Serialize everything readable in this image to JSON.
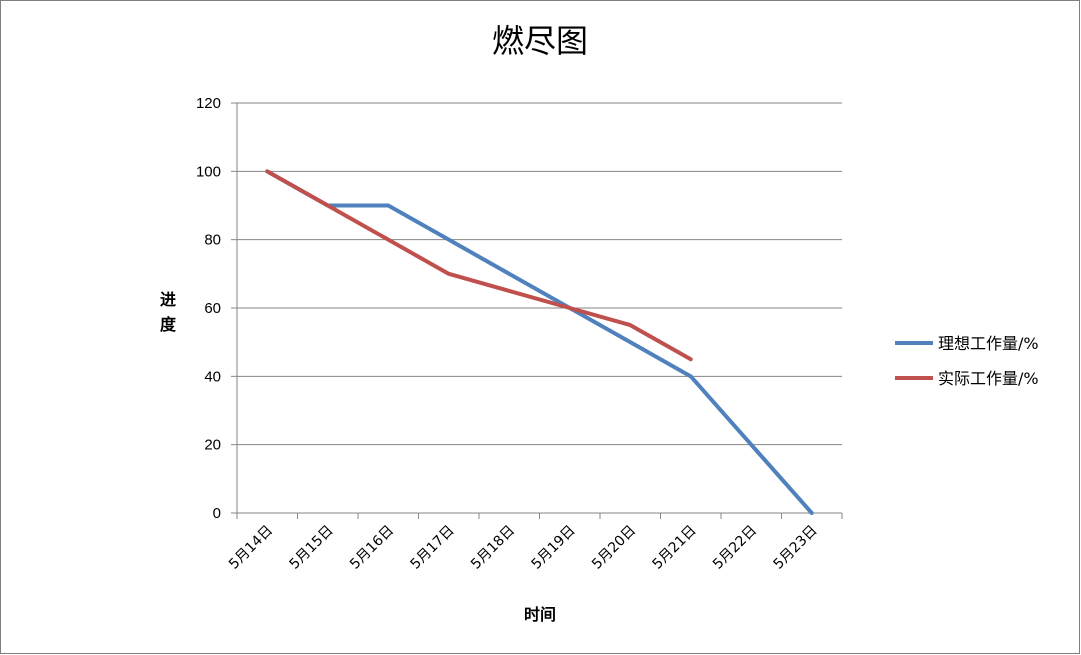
{
  "chart_data": {
    "type": "line",
    "title": "燃尽图",
    "xlabel": "时间",
    "ylabel": "进度",
    "categories": [
      "5月14日",
      "5月15日",
      "5月16日",
      "5月17日",
      "5月18日",
      "5月19日",
      "5月20日",
      "5月21日",
      "5月22日",
      "5月23日"
    ],
    "ylim": [
      0,
      120
    ],
    "yticks": [
      0,
      20,
      40,
      60,
      80,
      100,
      120
    ],
    "grid": true,
    "legend": "right",
    "series": [
      {
        "name": "理想工作量/%",
        "color": "#4f81bd",
        "values": [
          100,
          90,
          90,
          80,
          70,
          60,
          50,
          40,
          20,
          0
        ]
      },
      {
        "name": "实际工作量/%",
        "color": "#c0504d",
        "values": [
          100,
          90,
          80,
          70,
          65,
          60,
          55,
          45,
          null,
          null
        ]
      }
    ]
  }
}
